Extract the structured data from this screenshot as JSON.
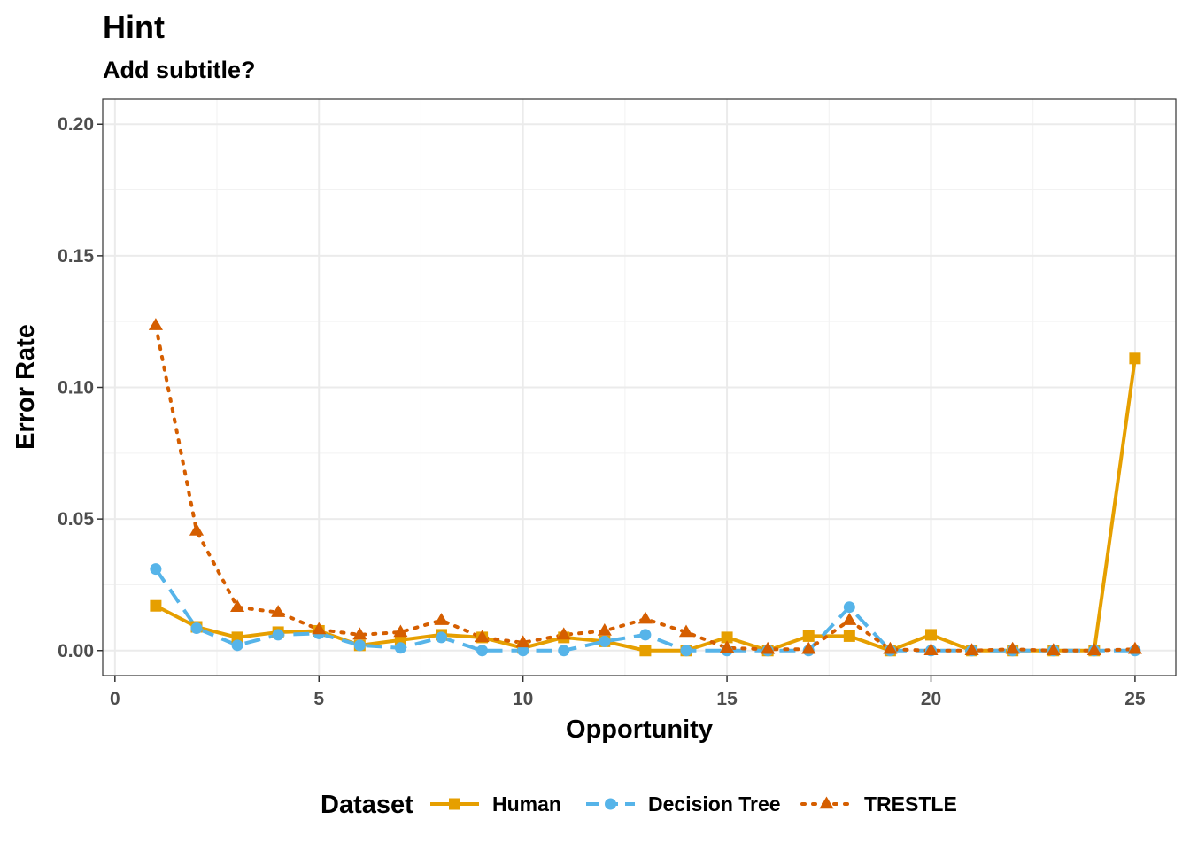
{
  "chart_data": {
    "type": "line",
    "title": "Hint",
    "subtitle": "Add subtitle?",
    "xlabel": "Opportunity",
    "ylabel": "Error Rate",
    "xlim": [
      -0.3,
      26.0
    ],
    "ylim": [
      -0.0095,
      0.2095
    ],
    "x_ticks": [
      0,
      5,
      10,
      15,
      20,
      25
    ],
    "x_tick_labels": [
      "0",
      "5",
      "10",
      "15",
      "20",
      "25"
    ],
    "y_ticks": [
      0.0,
      0.05,
      0.1,
      0.15,
      0.2
    ],
    "y_tick_labels": [
      "0.00",
      "0.05",
      "0.10",
      "0.15",
      "0.20"
    ],
    "grid": true,
    "legend": {
      "title": "Dataset",
      "position": "bottom"
    },
    "x": [
      1,
      2,
      3,
      4,
      5,
      6,
      7,
      8,
      9,
      10,
      11,
      12,
      13,
      14,
      15,
      16,
      17,
      18,
      19,
      20,
      21,
      22,
      23,
      24,
      25
    ],
    "series": [
      {
        "name": "Human",
        "color": "#E69F00",
        "marker": "square",
        "line": "solid",
        "values": [
          0.017,
          0.009,
          0.005,
          0.007,
          0.0075,
          0.002,
          0.004,
          0.006,
          0.005,
          0.001,
          0.005,
          0.0035,
          0.0,
          0.0,
          0.005,
          0.0,
          0.0055,
          0.0055,
          0.0,
          0.006,
          0.0,
          0.0,
          0.0,
          0.0,
          0.111
        ]
      },
      {
        "name": "Decision Tree",
        "color": "#56B4E9",
        "marker": "circle",
        "line": "dashed",
        "values": [
          0.031,
          0.0085,
          0.002,
          0.006,
          0.0065,
          0.002,
          0.001,
          0.005,
          0.0,
          0.0,
          0.0,
          0.0035,
          0.006,
          0.0,
          0.0,
          0.0,
          0.0,
          0.0165,
          0.0,
          0.0,
          0.0,
          0.0,
          0.0,
          0.0,
          0.0
        ]
      },
      {
        "name": "TRESTLE",
        "color": "#D55E00",
        "marker": "triangle",
        "line": "dotted",
        "values": [
          0.1235,
          0.0455,
          0.0165,
          0.0145,
          0.008,
          0.006,
          0.007,
          0.0115,
          0.005,
          0.003,
          0.006,
          0.0075,
          0.012,
          0.007,
          0.001,
          0.0005,
          0.0005,
          0.0115,
          0.0005,
          0.0,
          0.0,
          0.0005,
          0.0,
          0.0,
          0.0005
        ]
      }
    ]
  }
}
